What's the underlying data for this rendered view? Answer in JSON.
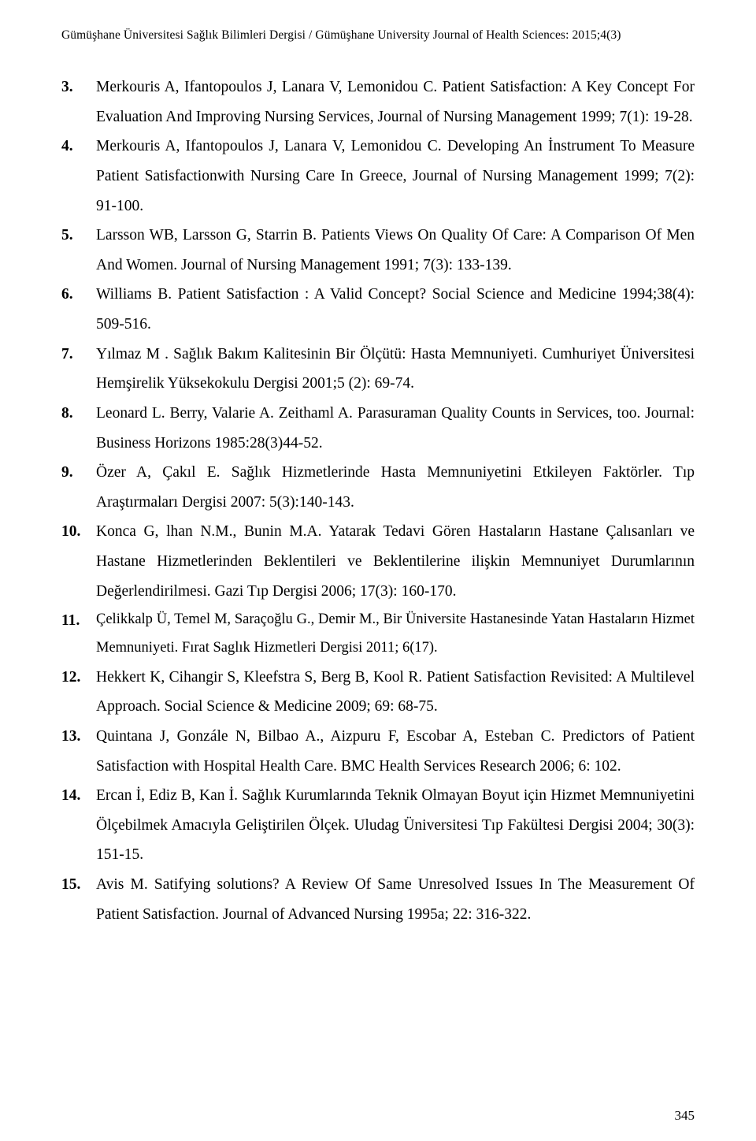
{
  "header": {
    "text": "Gümüşhane Üniversitesi Sağlık Bilimleri Dergisi / Gümüşhane University Journal of Health Sciences: 2015;4(3)"
  },
  "references": [
    {
      "n": "3",
      "text": "Merkouris A, Ifantopoulos J, Lanara V, Lemonidou C. Patient Satisfaction: A Key Concept For Evaluation And Improving Nursing Services, Journal of Nursing Management 1999; 7(1): 19-28."
    },
    {
      "n": "4",
      "text": "Merkouris A, Ifantopoulos J, Lanara V, Lemonidou C. Developing An İnstrument To Measure Patient Satisfactionwith Nursing Care In Greece, Journal of Nursing Management 1999; 7(2): 91-100."
    },
    {
      "n": "5",
      "text": "Larsson WB, Larsson G, Starrin B. Patients Views On Quality Of Care: A Comparison Of Men And Women. Journal of Nursing Management 1991; 7(3): 133-139."
    },
    {
      "n": "6",
      "text": "Williams B. Patient Satisfaction : A Valid Concept? Social Science and Medicine 1994;38(4): 509-516."
    },
    {
      "n": "7",
      "text": "Yılmaz M . Sağlık Bakım Kalitesinin Bir Ölçütü: Hasta Memnuniyeti. Cumhuriyet Üniversitesi Hemşirelik Yüksekokulu Dergisi 2001;5 (2): 69-74."
    },
    {
      "n": "8",
      "text": "Leonard L. Berry, Valarie A. Zeithaml A. Parasuraman Quality Counts in Services, too. Journal: Business Horizons 1985:28(3)44-52."
    },
    {
      "n": "9",
      "text": "Özer A, Çakıl E. Sağlık Hizmetlerinde Hasta Memnuniyetini Etkileyen Faktörler. Tıp Araştırmaları Dergisi 2007: 5(3):140-143."
    },
    {
      "n": "10",
      "text": "Konca G, lhan N.M., Bunin M.A. Yatarak Tedavi Gören Hastaların Hastane Çalısanları ve Hastane Hizmetlerinden Beklentileri ve Beklentilerine ilişkin Memnuniyet Durumlarının Değerlendirilmesi. Gazi Tıp Dergisi 2006; 17(3): 160-170."
    },
    {
      "n": "11",
      "text": "Çelikkalp Ü, Temel M, Saraçoğlu G., Demir M., Bir Üniversite Hastanesinde Yatan Hastaların Hizmet Memnuniyeti. Fırat Saglık Hizmetleri Dergisi 2011; 6(17).",
      "smaller": true
    },
    {
      "n": "12",
      "text": "Hekkert K, Cihangir S, Kleefstra S, Berg B, Kool R. Patient Satisfaction Revisited: A Multilevel Approach. Social Science & Medicine 2009; 69: 68-75."
    },
    {
      "n": "13",
      "text": "Quintana J, Gonzále N, Bilbao A., Aizpuru F, Escobar A, Esteban C. Predictors of Patient Satisfaction with Hospital Health Care. BMC Health Services Research 2006; 6: 102."
    },
    {
      "n": "14",
      "text": "Ercan İ, Ediz B, Kan İ. Sağlık Kurumlarında Teknik Olmayan Boyut için Hizmet Memnuniyetini Ölçebilmek Amacıyla Geliştirilen Ölçek. Uludag Üniversitesi Tıp Fakültesi Dergisi 2004; 30(3): 151-15."
    },
    {
      "n": "15",
      "text": "Avis M. Satifying solutions? A Review Of Same Unresolved Issues In The Measurement Of Patient Satisfaction. Journal of Advanced Nursing 1995a; 22: 316-322."
    }
  ],
  "footer": {
    "page_number": "345"
  }
}
